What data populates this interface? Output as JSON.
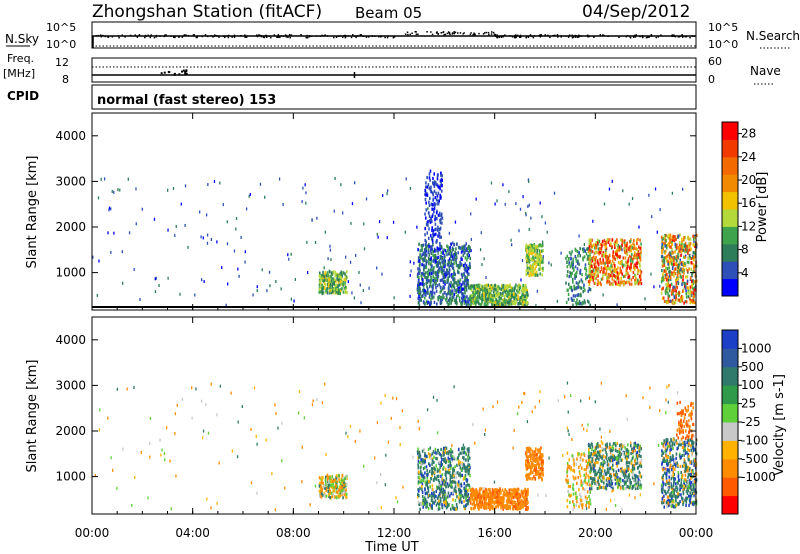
{
  "header": {
    "station": "Zhongshan Station (fitACF)",
    "beam": "Beam 05",
    "date": "04/Sep/2012"
  },
  "top_panel": {
    "left_label": "N.Sky",
    "left_ticks": [
      "10^5",
      "10^0"
    ],
    "right_ticks": [
      "10^5",
      "10^0"
    ],
    "right_label": "N.Search"
  },
  "freq_panel": {
    "left_label_1": "Freq.",
    "left_label_2": "[MHz]",
    "left_ticks": [
      "12",
      "8"
    ],
    "right_ticks": [
      "60",
      "0"
    ],
    "right_label": "Nave"
  },
  "cpid": {
    "label": "CPID",
    "text": "normal (fast stereo) 153"
  },
  "colors": {
    "power_scale": [
      "#0000ff",
      "#2e4fb8",
      "#2e7d5a",
      "#3fa34d",
      "#b3d93a",
      "#f2c200",
      "#f28a00",
      "#f26a00",
      "#f23a00",
      "#ff0000"
    ],
    "velocity_scale": [
      "#ff0000",
      "#ff5a00",
      "#ff8c00",
      "#ffb300",
      "#c8c8c8",
      "#5fd03a",
      "#2f9a4a",
      "#2f7a6a",
      "#2f5aa0",
      "#1c3fc8"
    ]
  },
  "chart_data": [
    {
      "type": "heatmap",
      "title": "",
      "xlabel": "Time UT",
      "ylabel": "Slant Range [km]",
      "xlim": [
        "00:00",
        "24:00"
      ],
      "ylim": [
        180,
        4500
      ],
      "x_ticks": [
        "00:00",
        "04:00",
        "08:00",
        "12:00",
        "16:00",
        "20:00",
        "00:00"
      ],
      "y_ticks": [
        "1000",
        "2000",
        "3000",
        "4000"
      ],
      "colorbar": {
        "label": "Power [dB]",
        "ticks": [
          "4",
          "8",
          "12",
          "16",
          "20",
          "24",
          "28"
        ],
        "range": [
          0,
          30
        ]
      },
      "cells": [
        {
          "t": 9.3,
          "r": 850,
          "v": 14
        },
        {
          "t": 9.6,
          "r": 780,
          "v": 12
        },
        {
          "t": 10.0,
          "r": 700,
          "v": 10
        },
        {
          "t": 13.6,
          "r": 1000,
          "v": 8
        },
        {
          "t": 14.5,
          "r": 650,
          "v": 10
        },
        {
          "t": 15.5,
          "r": 450,
          "v": 14
        },
        {
          "t": 16.3,
          "r": 420,
          "v": 12
        },
        {
          "t": 17.5,
          "r": 1300,
          "v": 16
        },
        {
          "t": 19.9,
          "r": 1350,
          "v": 20
        },
        {
          "t": 20.5,
          "r": 1100,
          "v": 24
        },
        {
          "t": 21.4,
          "r": 850,
          "v": 28
        },
        {
          "t": 22.9,
          "r": 1250,
          "v": 26
        },
        {
          "t": 23.6,
          "r": 700,
          "v": 22
        }
      ]
    },
    {
      "type": "heatmap",
      "title": "",
      "xlabel": "Time UT",
      "ylabel": "Slant Range [km]",
      "xlim": [
        "00:00",
        "24:00"
      ],
      "ylim": [
        180,
        4500
      ],
      "x_ticks": [
        "00:00",
        "04:00",
        "08:00",
        "12:00",
        "16:00",
        "20:00",
        "00:00"
      ],
      "y_ticks": [
        "1000",
        "2000",
        "3000",
        "4000"
      ],
      "colorbar": {
        "label": "Velocity [m s-1]",
        "ticks": [
          "1000",
          "500",
          "100",
          "25",
          "-25",
          "-100",
          "-500",
          "-1000"
        ],
        "range": [
          -1000,
          1000
        ]
      },
      "cells": [
        {
          "t": 9.3,
          "r": 850,
          "v": -100
        },
        {
          "t": 9.8,
          "r": 700,
          "v": 100
        },
        {
          "t": 13.6,
          "r": 1000,
          "v": 500
        },
        {
          "t": 15.4,
          "r": 500,
          "v": -500
        },
        {
          "t": 16.4,
          "r": 450,
          "v": -500
        },
        {
          "t": 17.5,
          "r": 1300,
          "v": -500
        },
        {
          "t": 20.0,
          "r": 1300,
          "v": -100
        },
        {
          "t": 21.3,
          "r": 900,
          "v": 100
        },
        {
          "t": 22.9,
          "r": 1250,
          "v": 500
        },
        {
          "t": 23.5,
          "r": 2100,
          "v": -500
        }
      ]
    }
  ]
}
